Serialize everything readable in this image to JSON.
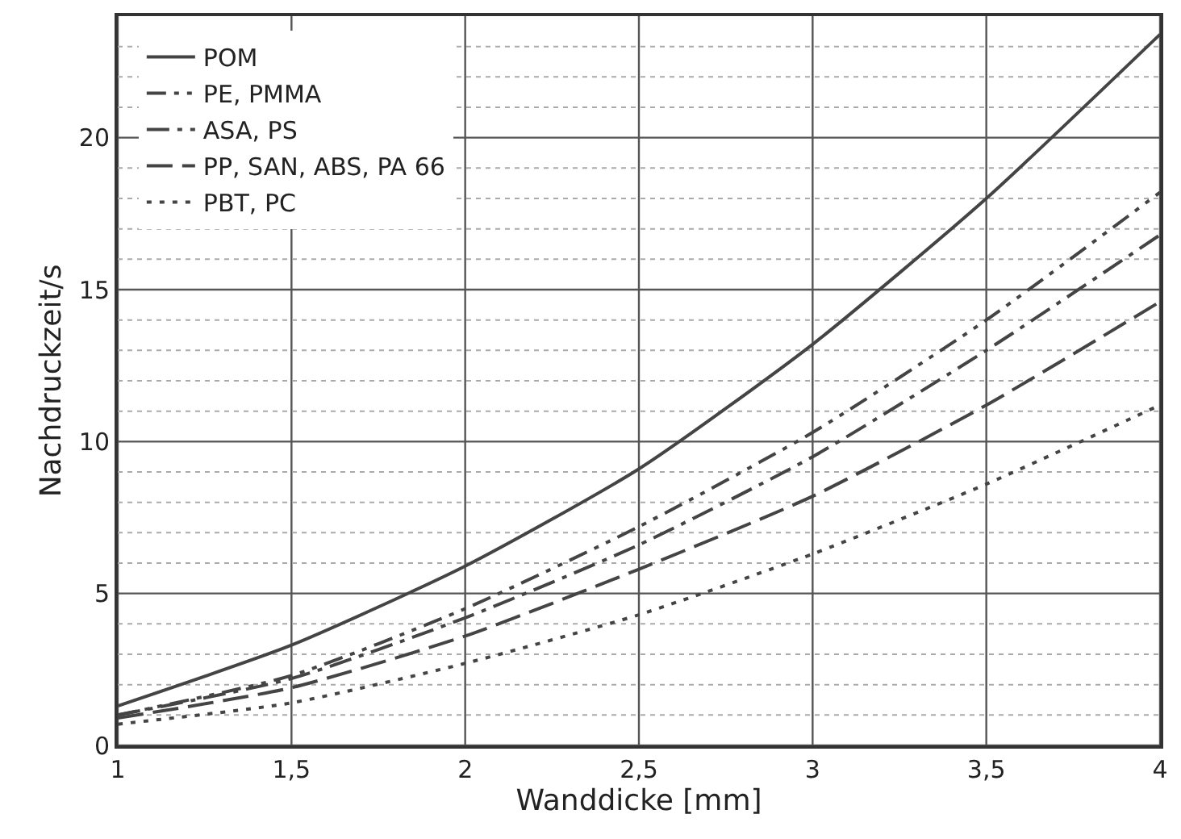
{
  "chart_data": {
    "type": "line",
    "xlabel": "Wanddicke [mm]",
    "ylabel": "Nachdruckzeit/s",
    "x": [
      1,
      1.5,
      2,
      2.5,
      3,
      3.5,
      4
    ],
    "series": [
      {
        "name": "POM",
        "color": "#444444",
        "line_style": "solid",
        "values": [
          1.3,
          3.3,
          5.9,
          9.1,
          13.2,
          18,
          23.4
        ]
      },
      {
        "name": "PE, PMMA",
        "color": "#444444",
        "line_style": "dashdotdot",
        "values": [
          1.0,
          2.3,
          4.5,
          7.2,
          10.3,
          14,
          18.2
        ]
      },
      {
        "name": "ASA, PS",
        "color": "#444444",
        "line_style": "dashdot",
        "values": [
          1.0,
          2.2,
          4.2,
          6.6,
          9.5,
          13,
          16.8
        ]
      },
      {
        "name": "PP, SAN, ABS, PA 66",
        "color": "#444444",
        "line_style": "dashed",
        "values": [
          0.9,
          1.9,
          3.6,
          5.8,
          8.2,
          11.2,
          14.6
        ]
      },
      {
        "name": "PBT, PC",
        "color": "#444444",
        "line_style": "dotted",
        "values": [
          0.7,
          1.4,
          2.7,
          4.3,
          6.3,
          8.6,
          11.2
        ]
      }
    ],
    "xlim": [
      1,
      4
    ],
    "xticks": [
      1,
      {
        "value": 1.5,
        "label": "1,5"
      },
      2,
      {
        "value": 2.5,
        "label": "2,5"
      },
      3,
      {
        "value": 3.5,
        "label": "3,5"
      },
      4
    ],
    "ylim": [
      0,
      24
    ],
    "yticks": [
      0,
      {
        "value": 1,
        "label": null
      },
      {
        "value": 2,
        "label": null
      },
      {
        "value": 3,
        "label": null
      },
      {
        "value": 4,
        "label": null
      },
      5,
      {
        "value": 6,
        "label": null
      },
      {
        "value": 7,
        "label": null
      },
      {
        "value": 8,
        "label": null
      },
      {
        "value": 9,
        "label": null
      },
      10,
      {
        "value": 11,
        "label": null
      },
      {
        "value": 12,
        "label": null
      },
      {
        "value": 13,
        "label": null
      },
      {
        "value": 14,
        "label": null
      },
      15,
      {
        "value": 16,
        "label": null
      },
      {
        "value": 17,
        "label": null
      },
      {
        "value": 18,
        "label": null
      },
      {
        "value": 19,
        "label": null
      },
      20,
      {
        "value": 21,
        "label": null
      },
      {
        "value": 22,
        "label": null
      },
      {
        "value": 23,
        "label": null
      }
    ],
    "grid": true,
    "legend": "top left",
    "marker": "none"
  }
}
